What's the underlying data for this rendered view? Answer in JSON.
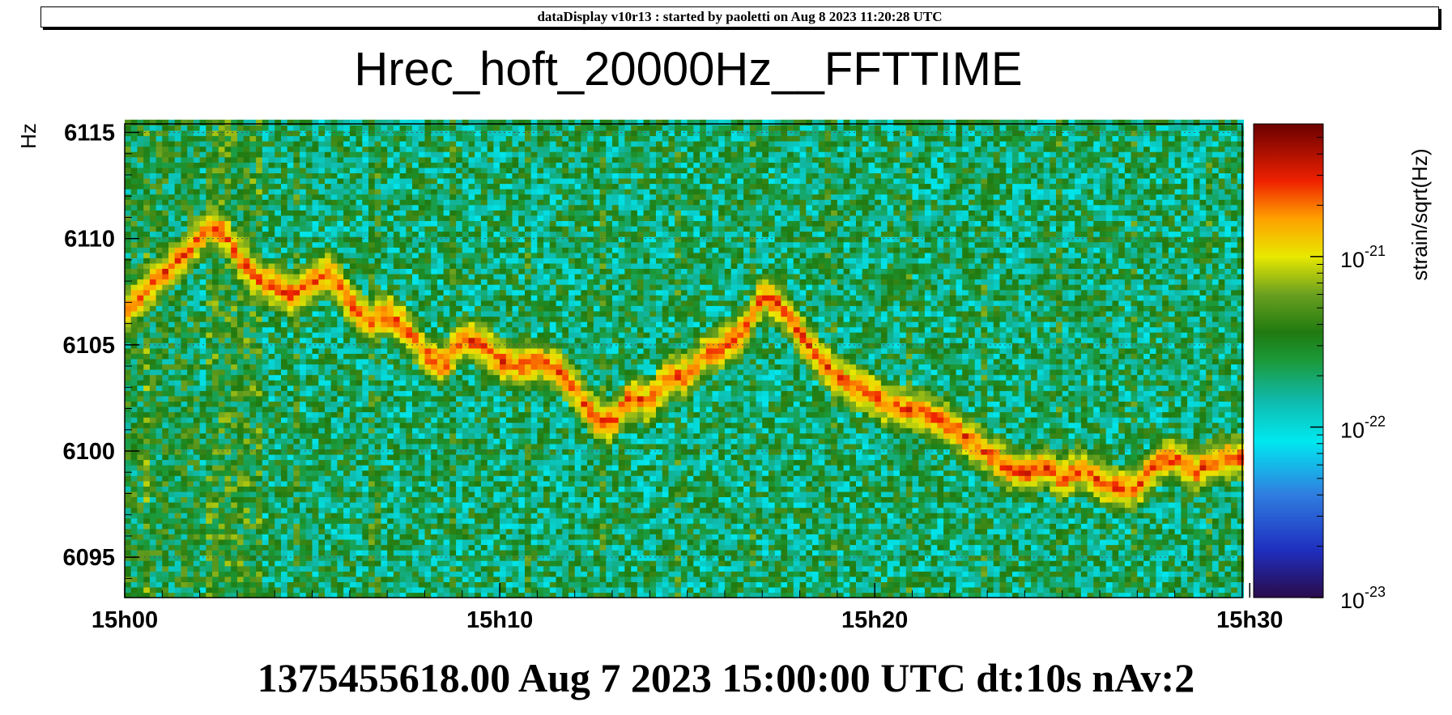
{
  "banner": "dataDisplay v10r13 : started by paoletti on Aug  8 2023 11:20:28 UTC",
  "footer": "1375455618.00 Aug 7 2023 15:00:00 UTC dt:10s nAv:2",
  "chart_data": {
    "type": "heatmap",
    "title": "Hrec_hoft_20000Hz__FFTTIME",
    "xlabel": "",
    "ylabel": "Hz",
    "x_tick_labels": [
      "15h00",
      "15h10",
      "15h20",
      "15h30"
    ],
    "x_tick_minutes": [
      0,
      10,
      20,
      30
    ],
    "xlim_minutes": [
      0,
      29.8
    ],
    "y_tick_labels": [
      "6095",
      "6100",
      "6105",
      "6110",
      "6115"
    ],
    "y_tick_values": [
      6095,
      6100,
      6105,
      6110,
      6115
    ],
    "ylim": [
      6093.1,
      6115.4
    ],
    "colorbar": {
      "label": "strain/sqrt(Hz)",
      "scale": "log",
      "range": [
        1e-23,
        6e-21
      ],
      "tick_base": "10",
      "tick_exponents": [
        "-23",
        "-22",
        "-21"
      ],
      "tick_values": [
        1e-23,
        1e-22,
        1e-21
      ]
    },
    "background_level": 2e-22,
    "line_level": 2.5e-21,
    "line_track": {
      "minutes": [
        0,
        0.5,
        1,
        1.5,
        2,
        2.3,
        2.7,
        3,
        3.5,
        4,
        4.5,
        5,
        5.5,
        6,
        6.5,
        7,
        7.5,
        8,
        8.5,
        9,
        9.5,
        10,
        10.5,
        11,
        11.5,
        12,
        12.5,
        13,
        13.5,
        14,
        14.5,
        15,
        15.5,
        16,
        16.5,
        17,
        17.5,
        18,
        18.5,
        19,
        19.5,
        20,
        20.5,
        21,
        21.5,
        22,
        22.5,
        23,
        23.5,
        24,
        24.5,
        25,
        25.5,
        26,
        26.5,
        27,
        27.5,
        28,
        28.5,
        29,
        29.5
      ],
      "hz": [
        6106.5,
        6107.5,
        6108.3,
        6109.1,
        6110.1,
        6110.7,
        6110.2,
        6109.2,
        6108.2,
        6107.8,
        6107.3,
        6108.0,
        6108.4,
        6107.0,
        6106.1,
        6106.5,
        6105.8,
        6104.6,
        6104.0,
        6105.4,
        6105.0,
        6104.3,
        6104.0,
        6104.2,
        6103.9,
        6103.0,
        6101.6,
        6101.3,
        6102.6,
        6102.3,
        6103.5,
        6103.6,
        6104.6,
        6105.0,
        6105.6,
        6107.4,
        6106.8,
        6105.6,
        6104.4,
        6103.5,
        6103.0,
        6102.6,
        6102.0,
        6102.0,
        6101.6,
        6101.2,
        6100.6,
        6099.9,
        6099.3,
        6098.9,
        6099.3,
        6098.7,
        6099.2,
        6098.6,
        6098.2,
        6098.3,
        6099.4,
        6099.7,
        6099.0,
        6099.5,
        6099.7
      ]
    }
  }
}
